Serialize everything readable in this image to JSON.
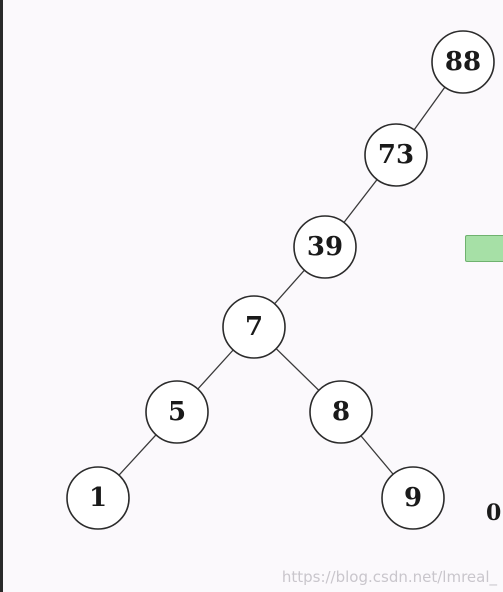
{
  "tree": {
    "nodes": [
      {
        "id": "n88",
        "label": "88"
      },
      {
        "id": "n73",
        "label": "73"
      },
      {
        "id": "n39",
        "label": "39"
      },
      {
        "id": "n7",
        "label": "7"
      },
      {
        "id": "n5",
        "label": "5"
      },
      {
        "id": "n8",
        "label": "8"
      },
      {
        "id": "n1",
        "label": "1"
      },
      {
        "id": "n9",
        "label": "9"
      }
    ],
    "edges": [
      [
        "n88",
        "n73"
      ],
      [
        "n73",
        "n39"
      ],
      [
        "n39",
        "n7"
      ],
      [
        "n7",
        "n5"
      ],
      [
        "n7",
        "n8"
      ],
      [
        "n5",
        "n1"
      ],
      [
        "n8",
        "n9"
      ]
    ]
  },
  "side_text": "0",
  "watermark": "https://blog.csdn.net/lmreal_",
  "colors": {
    "arrow_fill": "#a6e0a6",
    "arrow_border": "#6fb26f",
    "node_stroke": "#2b2b2b",
    "background": "#fbf9fc"
  }
}
